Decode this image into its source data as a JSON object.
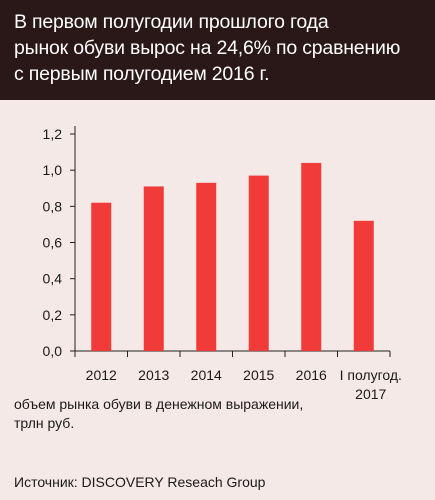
{
  "header": {
    "title": "В первом полугодии прошлого года\nрынок обуви вырос на 24,6%  по сравнению\nс первым полугодием 2016 г."
  },
  "chart_data": {
    "type": "bar",
    "categories": [
      "2012",
      "2013",
      "2014",
      "2015",
      "2016",
      "I полугод.\n2017"
    ],
    "values": [
      0.82,
      0.91,
      0.93,
      0.97,
      1.04,
      0.72
    ],
    "ylim": [
      0,
      1.2
    ],
    "yticks": [
      "0,0",
      "0,2",
      "0,4",
      "0,6",
      "0,8",
      "1,0",
      "1,2"
    ],
    "grid": false,
    "bar_color": "#f03b39",
    "ylabel": "объем рынка обуви в денежном выражении,\nтрлн руб."
  },
  "source": "Источник: DISCOVERY Reseach Group"
}
